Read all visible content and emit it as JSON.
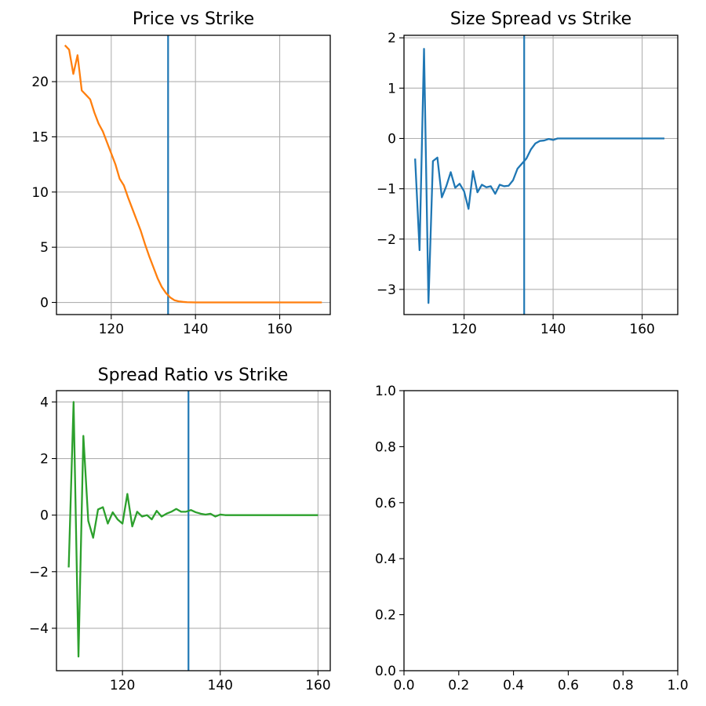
{
  "chart_data": [
    {
      "type": "line",
      "title": "Price vs Strike",
      "xlabel": "",
      "ylabel": "",
      "xlim": [
        107.0,
        172.0
      ],
      "ylim": [
        -1.1,
        24.2
      ],
      "xticks": [
        120,
        140,
        160
      ],
      "yticks": [
        0,
        5,
        10,
        15,
        20
      ],
      "grid": true,
      "vline": 133.5,
      "vline_color": "#1f77b4",
      "series": [
        {
          "color": "#ff7f0e",
          "x": [
            109,
            110,
            111,
            112,
            113,
            114,
            115,
            116,
            117,
            118,
            119,
            120,
            121,
            122,
            123,
            124,
            125,
            126,
            127,
            128,
            129,
            130,
            131,
            132,
            133,
            134,
            135,
            136,
            137,
            138,
            139,
            140,
            145,
            150,
            155,
            160,
            165,
            170
          ],
          "y": [
            23.3,
            22.9,
            20.7,
            22.4,
            19.2,
            18.8,
            18.4,
            17.2,
            16.2,
            15.5,
            14.5,
            13.5,
            12.5,
            11.2,
            10.6,
            9.5,
            8.5,
            7.5,
            6.5,
            5.3,
            4.2,
            3.2,
            2.2,
            1.4,
            0.85,
            0.45,
            0.2,
            0.1,
            0.05,
            0.02,
            0.01,
            0.0,
            0.0,
            0.0,
            0.0,
            0.0,
            0.0,
            0.0
          ]
        }
      ]
    },
    {
      "type": "line",
      "title": "Size Spread vs Strike",
      "xlabel": "",
      "ylabel": "",
      "xlim": [
        106.5,
        168.0
      ],
      "ylim": [
        -3.5,
        2.05
      ],
      "xticks": [
        120,
        140,
        160
      ],
      "yticks": [
        -3,
        -2,
        -1,
        0,
        1,
        2
      ],
      "grid": true,
      "vline": 133.5,
      "vline_color": "#1f77b4",
      "series": [
        {
          "color": "#1f77b4",
          "x": [
            109,
            110,
            111,
            112,
            113,
            114,
            115,
            116,
            117,
            118,
            119,
            120,
            121,
            122,
            123,
            124,
            125,
            126,
            127,
            128,
            129,
            130,
            131,
            132,
            133,
            134,
            135,
            136,
            137,
            138,
            139,
            140,
            141,
            145,
            150,
            155,
            160,
            165
          ],
          "y": [
            -0.4,
            -2.22,
            1.78,
            -3.27,
            -0.45,
            -0.38,
            -1.17,
            -0.95,
            -0.67,
            -0.98,
            -0.9,
            -1.05,
            -1.4,
            -0.65,
            -1.07,
            -0.92,
            -0.97,
            -0.95,
            -1.1,
            -0.92,
            -0.95,
            -0.94,
            -0.83,
            -0.6,
            -0.5,
            -0.4,
            -0.22,
            -0.1,
            -0.05,
            -0.04,
            -0.01,
            -0.03,
            0.0,
            0.0,
            0.0,
            0.0,
            0.0,
            0.0
          ]
        }
      ]
    },
    {
      "type": "line",
      "title": "Spread Ratio vs Strike",
      "xlabel": "",
      "ylabel": "",
      "xlim": [
        106.5,
        162.5
      ],
      "ylim": [
        -5.5,
        4.4
      ],
      "xticks": [
        120,
        140,
        160
      ],
      "yticks": [
        -4,
        -2,
        0,
        2,
        4
      ],
      "grid": true,
      "vline": 133.5,
      "vline_color": "#1f77b4",
      "series": [
        {
          "color": "#2ca02c",
          "x": [
            109,
            110,
            111,
            112,
            113,
            114,
            115,
            116,
            117,
            118,
            119,
            120,
            121,
            122,
            123,
            124,
            125,
            126,
            127,
            128,
            129,
            130,
            131,
            132,
            133,
            134,
            135,
            136,
            137,
            138,
            139,
            140,
            141,
            145,
            150,
            155,
            160
          ],
          "y": [
            -1.85,
            4.0,
            -5.0,
            2.8,
            -0.2,
            -0.8,
            0.2,
            0.28,
            -0.3,
            0.1,
            -0.15,
            -0.3,
            0.75,
            -0.4,
            0.12,
            -0.05,
            0.0,
            -0.15,
            0.15,
            -0.05,
            0.05,
            0.12,
            0.22,
            0.12,
            0.12,
            0.18,
            0.1,
            0.05,
            0.02,
            0.05,
            -0.05,
            0.02,
            0.0,
            0.0,
            0.0,
            0.0,
            0.0
          ]
        }
      ]
    },
    {
      "type": "line",
      "title": "",
      "xlabel": "",
      "ylabel": "",
      "xlim": [
        0.0,
        1.0
      ],
      "ylim": [
        0.0,
        1.0
      ],
      "xticks": [
        0.0,
        0.2,
        0.4,
        0.6,
        0.8,
        1.0
      ],
      "yticks": [
        0.0,
        0.2,
        0.4,
        0.6,
        0.8,
        1.0
      ],
      "tick_decimals": 1,
      "grid": false,
      "series": []
    }
  ]
}
